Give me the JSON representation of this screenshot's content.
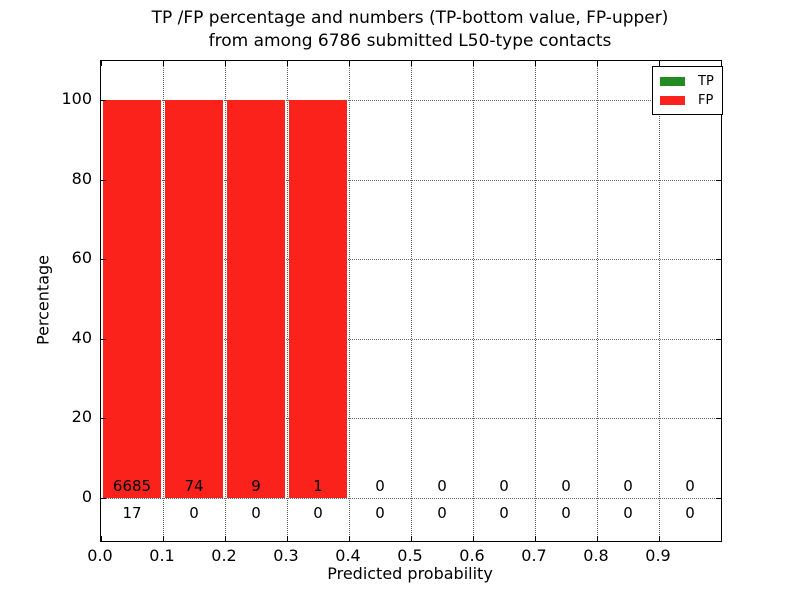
{
  "chart_data": {
    "type": "bar",
    "title_lines": [
      "TP /FP percentage and numbers (TP-bottom value, FP-upper)",
      "from among 6786 submitted L50-type contacts"
    ],
    "xlabel": "Predicted probability",
    "ylabel": "Percentage",
    "xlim": [
      0.0,
      1.0
    ],
    "ylim": [
      -11,
      110
    ],
    "x_tick_labels": [
      "0.0",
      "0.1",
      "0.2",
      "0.3",
      "0.4",
      "0.5",
      "0.6",
      "0.7",
      "0.8",
      "0.9"
    ],
    "y_tick_values": [
      0,
      20,
      40,
      60,
      80,
      100
    ],
    "grid": "dotted",
    "legend_position": "upper right",
    "bin_width": 0.1,
    "bin_starts": [
      0.0,
      0.1,
      0.2,
      0.3,
      0.4,
      0.5,
      0.6,
      0.7,
      0.8,
      0.9
    ],
    "series": [
      {
        "name": "TP",
        "color": "#228B22",
        "counts": [
          17,
          0,
          0,
          0,
          0,
          0,
          0,
          0,
          0,
          0
        ],
        "pct": [
          0,
          0,
          0,
          0,
          0,
          0,
          0,
          0,
          0,
          0
        ]
      },
      {
        "name": "FP",
        "color": "#FA221B",
        "counts": [
          6685,
          74,
          9,
          1,
          0,
          0,
          0,
          0,
          0,
          0
        ],
        "pct": [
          100,
          100,
          100,
          100,
          0,
          0,
          0,
          0,
          0,
          0
        ]
      }
    ],
    "colors": {
      "grid": "#666666",
      "axis": "#000000",
      "background": "#ffffff"
    }
  }
}
